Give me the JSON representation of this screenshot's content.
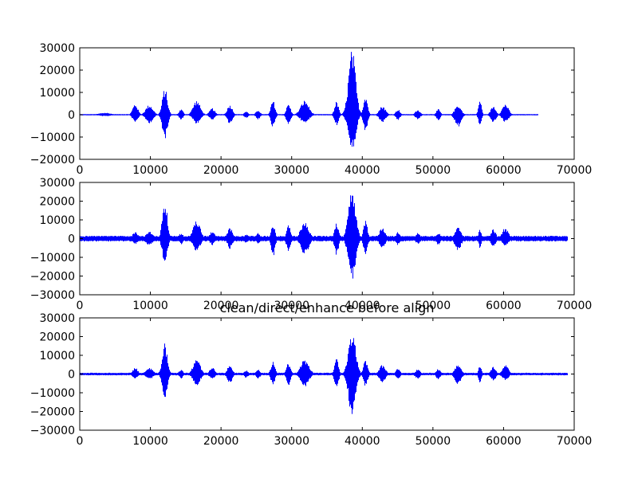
{
  "figure": {
    "background": "#ffffff",
    "line_color": "#0000ff"
  },
  "chart_data": [
    {
      "type": "line",
      "title": "",
      "xlabel": "",
      "ylabel": "",
      "xlim": [
        0,
        70000
      ],
      "ylim": [
        -20000,
        30000
      ],
      "xticks": [
        0,
        10000,
        20000,
        30000,
        40000,
        50000,
        60000,
        70000
      ],
      "yticks": [
        -20000,
        -10000,
        0,
        10000,
        20000,
        30000
      ],
      "xtick_labels": [
        "0",
        "10000",
        "20000",
        "30000",
        "40000",
        "50000",
        "60000",
        "70000"
      ],
      "ytick_labels": [
        "−20000",
        "−10000",
        "0",
        "10000",
        "20000",
        "30000"
      ],
      "grid": false,
      "series": [
        {
          "color": "#0000ff",
          "x_extent": [
            0,
            64800
          ],
          "noise_floor": 300,
          "envelope": [
            {
              "center": 3500,
              "pos": 900,
              "neg": 700,
              "width": 1200
            },
            {
              "center": 7800,
              "pos": 5000,
              "neg": 3500,
              "width": 500
            },
            {
              "center": 9800,
              "pos": 4500,
              "neg": 3800,
              "width": 700
            },
            {
              "center": 12000,
              "pos": 12000,
              "neg": 11000,
              "width": 500
            },
            {
              "center": 14300,
              "pos": 2500,
              "neg": 2200,
              "width": 400
            },
            {
              "center": 16500,
              "pos": 6500,
              "neg": 4000,
              "width": 700
            },
            {
              "center": 18700,
              "pos": 3000,
              "neg": 2500,
              "width": 500
            },
            {
              "center": 21200,
              "pos": 4500,
              "neg": 4200,
              "width": 500
            },
            {
              "center": 23500,
              "pos": 1500,
              "neg": 1500,
              "width": 400
            },
            {
              "center": 25200,
              "pos": 2200,
              "neg": 2200,
              "width": 400
            },
            {
              "center": 27300,
              "pos": 6500,
              "neg": 6000,
              "width": 400
            },
            {
              "center": 29500,
              "pos": 5000,
              "neg": 5000,
              "width": 400
            },
            {
              "center": 31800,
              "pos": 6500,
              "neg": 4000,
              "width": 800
            },
            {
              "center": 36300,
              "pos": 6000,
              "neg": 5000,
              "width": 400
            },
            {
              "center": 38500,
              "pos": 29500,
              "neg": 17500,
              "width": 700
            },
            {
              "center": 40400,
              "pos": 9000,
              "neg": 8000,
              "width": 400
            },
            {
              "center": 42800,
              "pos": 4000,
              "neg": 3500,
              "width": 600
            },
            {
              "center": 45000,
              "pos": 2500,
              "neg": 2500,
              "width": 400
            },
            {
              "center": 47800,
              "pos": 2000,
              "neg": 2000,
              "width": 500
            },
            {
              "center": 50700,
              "pos": 2500,
              "neg": 2500,
              "width": 400
            },
            {
              "center": 53500,
              "pos": 4500,
              "neg": 5500,
              "width": 600
            },
            {
              "center": 56600,
              "pos": 7000,
              "neg": 5000,
              "width": 300
            },
            {
              "center": 58500,
              "pos": 4000,
              "neg": 3500,
              "width": 500
            },
            {
              "center": 60200,
              "pos": 5000,
              "neg": 3500,
              "width": 600
            }
          ]
        }
      ]
    },
    {
      "type": "line",
      "title": "",
      "xlabel": "",
      "ylabel": "",
      "xlim": [
        0,
        70000
      ],
      "ylim": [
        -30000,
        30000
      ],
      "xticks": [
        0,
        10000,
        20000,
        30000,
        40000,
        50000,
        60000,
        70000
      ],
      "yticks": [
        -30000,
        -20000,
        -10000,
        0,
        10000,
        20000,
        30000
      ],
      "xtick_labels": [
        "0",
        "10000",
        "20000",
        "30000",
        "40000",
        "50000",
        "60000",
        "70000"
      ],
      "ytick_labels": [
        "−30000",
        "−20000",
        "−10000",
        "0",
        "10000",
        "20000",
        "30000"
      ],
      "grid": false,
      "series": [
        {
          "color": "#0000ff",
          "x_extent": [
            0,
            69000
          ],
          "noise_floor": 1500,
          "envelope": [
            {
              "center": 7800,
              "pos": 4000,
              "neg": 3000,
              "width": 500
            },
            {
              "center": 9800,
              "pos": 4000,
              "neg": 3500,
              "width": 700
            },
            {
              "center": 12000,
              "pos": 20000,
              "neg": 14500,
              "width": 500
            },
            {
              "center": 14300,
              "pos": 3000,
              "neg": 3000,
              "width": 400
            },
            {
              "center": 16500,
              "pos": 10000,
              "neg": 7000,
              "width": 700
            },
            {
              "center": 18700,
              "pos": 4000,
              "neg": 3500,
              "width": 500
            },
            {
              "center": 21200,
              "pos": 6000,
              "neg": 5500,
              "width": 500
            },
            {
              "center": 23500,
              "pos": 2500,
              "neg": 2500,
              "width": 400
            },
            {
              "center": 25200,
              "pos": 3000,
              "neg": 3000,
              "width": 400
            },
            {
              "center": 27300,
              "pos": 8000,
              "neg": 10000,
              "width": 400
            },
            {
              "center": 29500,
              "pos": 7500,
              "neg": 7000,
              "width": 400
            },
            {
              "center": 31800,
              "pos": 9000,
              "neg": 8500,
              "width": 800
            },
            {
              "center": 36300,
              "pos": 9000,
              "neg": 9000,
              "width": 400
            },
            {
              "center": 38500,
              "pos": 27000,
              "neg": 22000,
              "width": 700
            },
            {
              "center": 40400,
              "pos": 10000,
              "neg": 9000,
              "width": 400
            },
            {
              "center": 42800,
              "pos": 6000,
              "neg": 5000,
              "width": 600
            },
            {
              "center": 45000,
              "pos": 3500,
              "neg": 3500,
              "width": 400
            },
            {
              "center": 47800,
              "pos": 3000,
              "neg": 3000,
              "width": 500
            },
            {
              "center": 50700,
              "pos": 3500,
              "neg": 3500,
              "width": 400
            },
            {
              "center": 53500,
              "pos": 6000,
              "neg": 6500,
              "width": 600
            },
            {
              "center": 56600,
              "pos": 5000,
              "neg": 5000,
              "width": 300
            },
            {
              "center": 58500,
              "pos": 5000,
              "neg": 4500,
              "width": 500
            },
            {
              "center": 60200,
              "pos": 6000,
              "neg": 4000,
              "width": 600
            }
          ]
        }
      ]
    },
    {
      "type": "line",
      "title": "clean/direct/enhance before align",
      "xlabel": "",
      "ylabel": "",
      "xlim": [
        0,
        70000
      ],
      "ylim": [
        -30000,
        30000
      ],
      "xticks": [
        0,
        10000,
        20000,
        30000,
        40000,
        50000,
        60000,
        70000
      ],
      "yticks": [
        -30000,
        -20000,
        -10000,
        0,
        10000,
        20000,
        30000
      ],
      "xtick_labels": [
        "0",
        "10000",
        "20000",
        "30000",
        "40000",
        "50000",
        "60000",
        "70000"
      ],
      "ytick_labels": [
        "−30000",
        "−20000",
        "−10000",
        "0",
        "10000",
        "20000",
        "30000"
      ],
      "grid": false,
      "series": [
        {
          "color": "#0000ff",
          "x_extent": [
            0,
            69000
          ],
          "noise_floor": 700,
          "envelope": [
            {
              "center": 7800,
              "pos": 3500,
              "neg": 2500,
              "width": 500
            },
            {
              "center": 9800,
              "pos": 3500,
              "neg": 3000,
              "width": 700
            },
            {
              "center": 12000,
              "pos": 16500,
              "neg": 13000,
              "width": 500
            },
            {
              "center": 14300,
              "pos": 2500,
              "neg": 2500,
              "width": 400
            },
            {
              "center": 16500,
              "pos": 8000,
              "neg": 6000,
              "width": 700
            },
            {
              "center": 18700,
              "pos": 3500,
              "neg": 3000,
              "width": 500
            },
            {
              "center": 21200,
              "pos": 5000,
              "neg": 5000,
              "width": 500
            },
            {
              "center": 23500,
              "pos": 2000,
              "neg": 2000,
              "width": 400
            },
            {
              "center": 25200,
              "pos": 2500,
              "neg": 2500,
              "width": 400
            },
            {
              "center": 27300,
              "pos": 7000,
              "neg": 6000,
              "width": 400
            },
            {
              "center": 29500,
              "pos": 6000,
              "neg": 6000,
              "width": 400
            },
            {
              "center": 31800,
              "pos": 8000,
              "neg": 7000,
              "width": 800
            },
            {
              "center": 36300,
              "pos": 8000,
              "neg": 7500,
              "width": 400
            },
            {
              "center": 38500,
              "pos": 23000,
              "neg": 22000,
              "width": 700
            },
            {
              "center": 40400,
              "pos": 8000,
              "neg": 7000,
              "width": 400
            },
            {
              "center": 42800,
              "pos": 5000,
              "neg": 4500,
              "width": 600
            },
            {
              "center": 45000,
              "pos": 3000,
              "neg": 3000,
              "width": 400
            },
            {
              "center": 47800,
              "pos": 2500,
              "neg": 2500,
              "width": 500
            },
            {
              "center": 50700,
              "pos": 3000,
              "neg": 3000,
              "width": 400
            },
            {
              "center": 53500,
              "pos": 5000,
              "neg": 5500,
              "width": 600
            },
            {
              "center": 56600,
              "pos": 4500,
              "neg": 4500,
              "width": 300
            },
            {
              "center": 58500,
              "pos": 4000,
              "neg": 3500,
              "width": 500
            },
            {
              "center": 60200,
              "pos": 5000,
              "neg": 3500,
              "width": 600
            }
          ]
        }
      ]
    }
  ]
}
